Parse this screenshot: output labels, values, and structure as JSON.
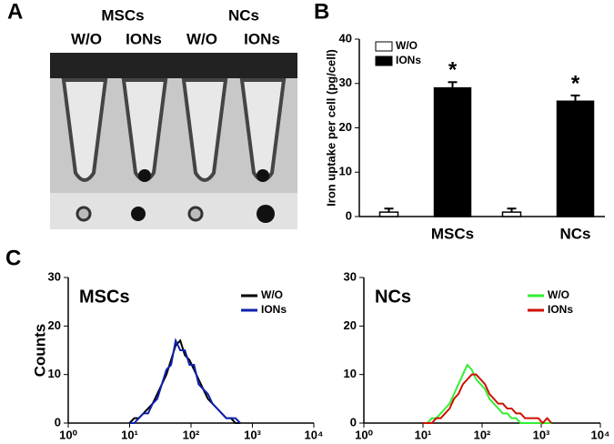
{
  "panel_labels": [
    "A",
    "B",
    "C"
  ],
  "photo": {
    "groups": [
      "MSCs",
      "NCs"
    ],
    "labels": [
      "W/O",
      "IONs",
      "W/O",
      "IONs"
    ]
  },
  "chart_data": [
    {
      "type": "bar",
      "ylabel": "Iron uptake per cell (pg/cell)",
      "categories": [
        "MSCs",
        "NCs"
      ],
      "series": [
        {
          "name": "W/O",
          "color": "#ffffff",
          "values": [
            1,
            1
          ],
          "errors": [
            0.8,
            0.8
          ]
        },
        {
          "name": "IONs",
          "color": "#000000",
          "values": [
            29,
            26
          ],
          "errors": [
            1.3,
            1.3
          ]
        }
      ],
      "annotations": [
        "*",
        "*"
      ],
      "ylim": [
        0,
        40
      ],
      "yticks": [
        0,
        10,
        20,
        30,
        40
      ],
      "legend": "top-left"
    },
    {
      "type": "line",
      "title": "MSCs",
      "ylabel": "Counts",
      "xscale": "log",
      "x": [
        10,
        11.9,
        14.1,
        16.8,
        20,
        23.7,
        28.2,
        33.5,
        39.8,
        47.3,
        56.2,
        66.8,
        79.4,
        94.4,
        112,
        133,
        158,
        188,
        224,
        266,
        316,
        376,
        447,
        531,
        631
      ],
      "series": [
        {
          "name": "W/O",
          "color": "#000000",
          "values": [
            0,
            1,
            1,
            2,
            3,
            4,
            6,
            8,
            10,
            13,
            16,
            17,
            14,
            13,
            11,
            9,
            7,
            5,
            4,
            3,
            2,
            1,
            1,
            0,
            0
          ]
        },
        {
          "name": "IONs",
          "color": "#1020b0",
          "values": [
            0,
            0,
            1,
            2,
            2,
            4,
            5,
            8,
            11,
            12,
            17,
            15,
            15,
            12,
            12,
            8,
            7,
            6,
            4,
            3,
            2,
            1,
            1,
            1,
            0
          ]
        }
      ],
      "xlim": [
        1,
        10000
      ],
      "xticks": [
        {
          "value": 1,
          "label": "10⁰"
        },
        {
          "value": 10,
          "label": "10¹"
        },
        {
          "value": 100,
          "label": "10²"
        },
        {
          "value": 1000,
          "label": "10³"
        },
        {
          "value": 10000,
          "label": "10⁴"
        }
      ],
      "ylim": [
        0,
        30
      ],
      "yticks": [
        0,
        10,
        20,
        30
      ],
      "legend": "top-right"
    },
    {
      "type": "line",
      "title": "NCs",
      "xscale": "log",
      "x": [
        10,
        11.9,
        14.1,
        16.8,
        20,
        23.7,
        28.2,
        33.5,
        39.8,
        47.3,
        56.2,
        66.8,
        79.4,
        94.4,
        112,
        133,
        158,
        188,
        224,
        266,
        316,
        376,
        447,
        531,
        631,
        750,
        891,
        1059,
        1259,
        1496
      ],
      "series": [
        {
          "name": "W/O",
          "color": "#33ee33",
          "values": [
            0,
            0,
            1,
            1,
            2,
            3,
            4,
            6,
            8,
            10,
            12,
            11,
            9,
            8,
            7,
            5,
            4,
            3,
            2,
            2,
            1,
            1,
            0,
            0,
            0,
            0,
            0,
            0,
            0,
            0
          ]
        },
        {
          "name": "IONs",
          "color": "#cc1100",
          "values": [
            0,
            0,
            0,
            1,
            1,
            2,
            3,
            5,
            6,
            8,
            9,
            10,
            10,
            9,
            8,
            6,
            5,
            4,
            4,
            3,
            3,
            2,
            2,
            1,
            1,
            1,
            1,
            0,
            1,
            0
          ]
        }
      ],
      "xlim": [
        1,
        10000
      ],
      "xticks": [
        {
          "value": 1,
          "label": "10⁰"
        },
        {
          "value": 10,
          "label": "10¹"
        },
        {
          "value": 100,
          "label": "10²"
        },
        {
          "value": 1000,
          "label": "10³"
        },
        {
          "value": 10000,
          "label": "10⁴"
        }
      ],
      "ylim": [
        0,
        30
      ],
      "yticks": [
        0,
        10,
        20,
        30
      ],
      "legend": "top-right"
    }
  ]
}
